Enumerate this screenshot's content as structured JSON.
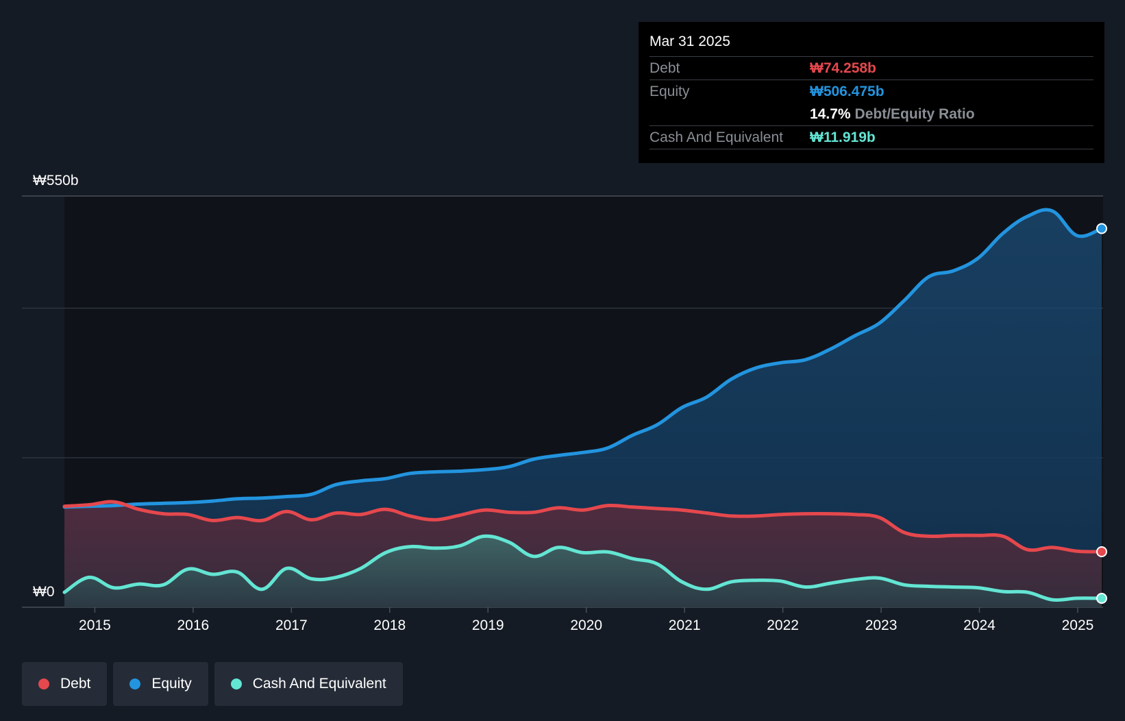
{
  "colors": {
    "background": "#151b24",
    "debt": "#e5484d",
    "equity": "#2394df",
    "cash": "#63e5d3",
    "tooltip_bg": "#000000",
    "muted_text": "#8a8f96"
  },
  "tooltip": {
    "date": "Mar 31 2025",
    "debt_label": "Debt",
    "debt_value": "₩74.258b",
    "equity_label": "Equity",
    "equity_value": "₩506.475b",
    "ratio_value": "14.7%",
    "ratio_label": "Debt/Equity Ratio",
    "cash_label": "Cash And Equivalent",
    "cash_value": "₩11.919b"
  },
  "legend": {
    "items": [
      {
        "label": "Debt",
        "color": "#e5484d"
      },
      {
        "label": "Equity",
        "color": "#2394df"
      },
      {
        "label": "Cash And Equivalent",
        "color": "#63e5d3"
      }
    ]
  },
  "chart_data": {
    "type": "area",
    "title": "",
    "xlabel": "",
    "ylabel": "",
    "ylim": [
      0,
      550
    ],
    "y_unit": "₩b",
    "y_tick_labels": [
      "₩550b",
      "₩0"
    ],
    "y_gridlines": [
      0,
      200,
      400,
      550
    ],
    "xlim": [
      2014.3,
      2025.3
    ],
    "x_ticks": [
      2015,
      2016,
      2017,
      2018,
      2019,
      2020,
      2021,
      2022,
      2023,
      2024,
      2025
    ],
    "x_tick_labels": [
      "2015",
      "2016",
      "2017",
      "2018",
      "2019",
      "2020",
      "2021",
      "2022",
      "2023",
      "2024",
      "2025"
    ],
    "x": [
      2014.75,
      2015.0,
      2015.25,
      2015.5,
      2015.75,
      2016.0,
      2016.25,
      2016.5,
      2016.75,
      2017.0,
      2017.25,
      2017.5,
      2017.75,
      2018.0,
      2018.25,
      2018.5,
      2018.75,
      2019.0,
      2019.25,
      2019.5,
      2019.75,
      2020.0,
      2020.25,
      2020.5,
      2020.75,
      2021.0,
      2021.25,
      2021.5,
      2021.75,
      2022.0,
      2022.25,
      2022.5,
      2022.75,
      2023.0,
      2023.25,
      2023.5,
      2023.75,
      2024.0,
      2024.25,
      2024.5,
      2024.75,
      2025.0,
      2025.25
    ],
    "series": [
      {
        "name": "Equity",
        "values": [
          134,
          135,
          136,
          138,
          139,
          140,
          142,
          145,
          146,
          148,
          151,
          164,
          169,
          172,
          179,
          181,
          182,
          184,
          188,
          198,
          203,
          207,
          213,
          230,
          244,
          267,
          281,
          305,
          320,
          327,
          331,
          345,
          363,
          380,
          410,
          442,
          450,
          467,
          500,
          523,
          530,
          497,
          506.475
        ]
      },
      {
        "name": "Debt",
        "values": [
          135,
          137,
          141,
          131,
          125,
          124,
          116,
          120,
          116,
          128,
          117,
          126,
          124,
          131,
          122,
          117,
          123,
          130,
          127,
          127,
          133,
          130,
          136,
          134,
          132,
          130,
          126,
          122,
          122,
          124,
          125,
          125,
          124,
          120,
          100,
          95,
          96,
          96,
          95,
          77,
          80,
          75,
          74.258
        ]
      },
      {
        "name": "Cash And Equivalent",
        "values": [
          20,
          40,
          26,
          31,
          30,
          51,
          44,
          47,
          24,
          52,
          38,
          40,
          52,
          73,
          81,
          79,
          82,
          95,
          87,
          68,
          80,
          73,
          74,
          65,
          58,
          34,
          24,
          34,
          36,
          35,
          27,
          32,
          37,
          39,
          30,
          28,
          27,
          26,
          21,
          20,
          10,
          12,
          11.919
        ]
      }
    ]
  }
}
